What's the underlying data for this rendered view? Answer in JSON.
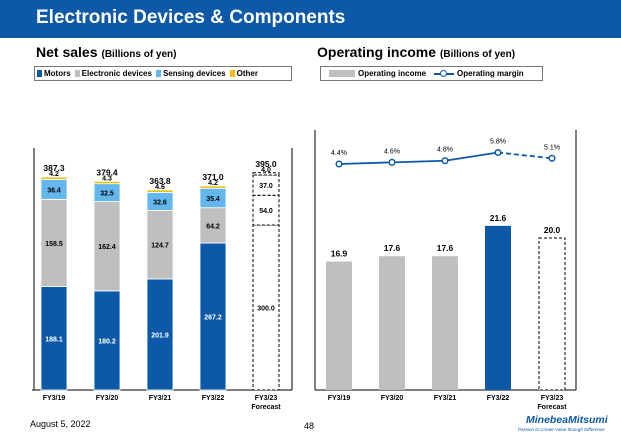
{
  "page_title": "Electronic Devices & Components",
  "footer": {
    "date": "August 5, 2022",
    "page": "48",
    "brand": "MinebeaMitsumi",
    "tagline": "Passion to Create Value through Difference"
  },
  "colors": {
    "motors": "#0d59a8",
    "electronic": "#bfbfbf",
    "sensing": "#63b7ec",
    "other": "#f0c000",
    "accent": "#0d59a8"
  },
  "chart_data": [
    {
      "type": "bar",
      "title": "Net sales",
      "unit": "(Billions of yen)",
      "categories": [
        "FY3/19",
        "FY3/20",
        "FY3/21",
        "FY3/22",
        "FY3/23\nForecast"
      ],
      "series": [
        {
          "name": "Motors",
          "values": [
            188.1,
            180.2,
            201.9,
            267.2,
            300.0
          ]
        },
        {
          "name": "Electronic devices",
          "values": [
            158.5,
            162.4,
            124.7,
            64.2,
            54.0
          ]
        },
        {
          "name": "Sensing devices",
          "values": [
            36.4,
            32.5,
            32.6,
            35.4,
            37.0
          ]
        },
        {
          "name": "Other",
          "values": [
            4.2,
            4.3,
            4.6,
            4.2,
            4.0
          ]
        }
      ],
      "totals": [
        387.3,
        379.4,
        363.8,
        371.0,
        395.0
      ],
      "forecast_index": 4
    },
    {
      "type": "bar",
      "title": "Operating income",
      "unit": "(Billions of yen)",
      "categories": [
        "FY3/19",
        "FY3/20",
        "FY3/21",
        "FY3/22",
        "FY3/23\nForecast"
      ],
      "series": [
        {
          "name": "Operating income",
          "values": [
            16.9,
            17.6,
            17.6,
            21.6,
            20.0
          ]
        },
        {
          "name": "Operating margin",
          "values": [
            4.4,
            4.6,
            4.8,
            5.8,
            5.1
          ],
          "labels": [
            "4.4%",
            "4.6%",
            "4.8%",
            "5.8%",
            "5.1%"
          ]
        }
      ],
      "forecast_index": 4
    }
  ]
}
